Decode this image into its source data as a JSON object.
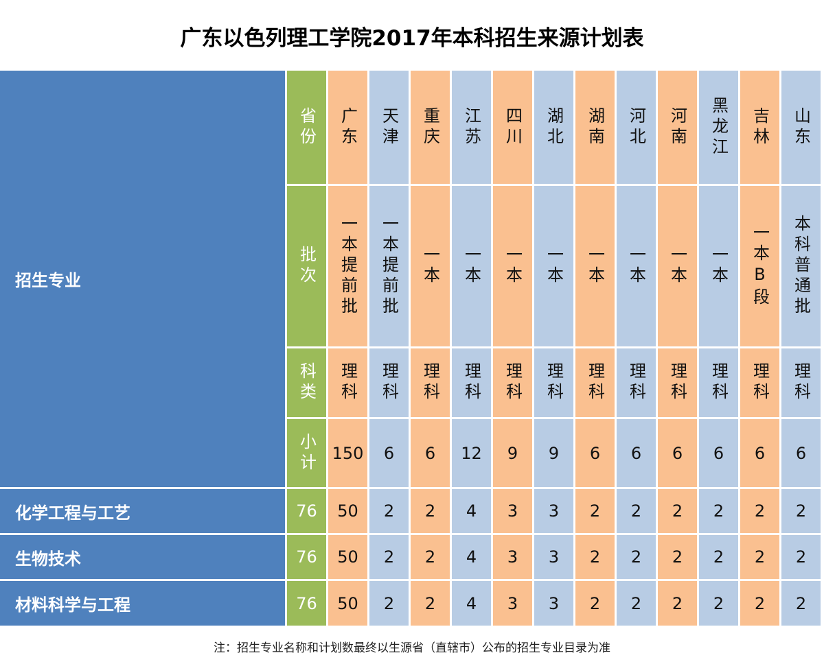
{
  "title": "广东以色列理工学院2017年本科招生来源计划表",
  "corner_label": "招生专业",
  "row_labels": {
    "province": "省份",
    "batch": "批次",
    "category": "科类",
    "subtotal": "小计"
  },
  "provinces": [
    "广东",
    "天津",
    "重庆",
    "江苏",
    "四川",
    "湖北",
    "湖南",
    "河北",
    "河南",
    "黑龙江",
    "吉林",
    "山东"
  ],
  "batches": [
    "一本提前批",
    "一本提前批",
    "一本",
    "一本",
    "一本",
    "一本",
    "一本",
    "一本",
    "一本",
    "一本",
    "一本B段",
    "本科普通批"
  ],
  "categories": [
    "理科",
    "理科",
    "理科",
    "理科",
    "理科",
    "理科",
    "理科",
    "理科",
    "理科",
    "理科",
    "理科",
    "理科"
  ],
  "subtotals": [
    "150",
    "6",
    "6",
    "12",
    "9",
    "9",
    "6",
    "6",
    "6",
    "6",
    "6",
    "6"
  ],
  "majors": [
    {
      "name": "化学工程与工艺",
      "total": "76",
      "values": [
        "50",
        "2",
        "2",
        "4",
        "3",
        "3",
        "2",
        "2",
        "2",
        "2",
        "2",
        "2"
      ]
    },
    {
      "name": "生物技术",
      "total": "76",
      "values": [
        "50",
        "2",
        "2",
        "4",
        "3",
        "3",
        "2",
        "2",
        "2",
        "2",
        "2",
        "2"
      ]
    },
    {
      "name": "材料科学与工程",
      "total": "76",
      "values": [
        "50",
        "2",
        "2",
        "4",
        "3",
        "3",
        "2",
        "2",
        "2",
        "2",
        "2",
        "2"
      ]
    }
  ],
  "note": "注：招生专业名称和计划数最终以生源省（直辖市）公布的招生专业目录为准",
  "colors": {
    "major_column": "#4f81bd",
    "label_column": "#9bbb59",
    "odd_province": "#fac090",
    "even_province": "#b8cce4"
  }
}
